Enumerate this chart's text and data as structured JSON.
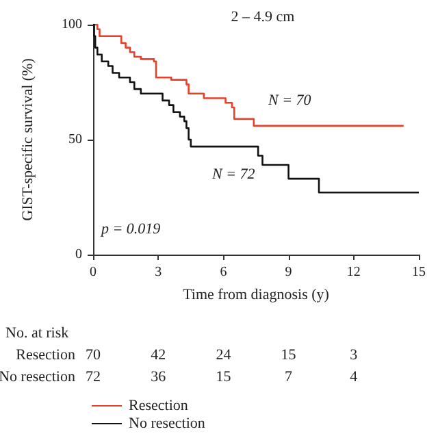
{
  "chart_data": {
    "type": "step",
    "title": "2 – 4.9 cm",
    "xlabel": "Time from diagnosis (y)",
    "ylabel": "GIST-specific survival (%)",
    "xlim": [
      0,
      15
    ],
    "xticks": [
      0,
      3,
      6,
      9,
      12,
      15
    ],
    "ylim": [
      0,
      100
    ],
    "yticks": [
      0,
      50,
      100
    ],
    "grid": false,
    "legend": "bottom left",
    "marker": "none",
    "line_style": "solid",
    "series": [
      {
        "name": "Resection",
        "color": "#e8402a",
        "x": [
          0,
          0.2,
          0.3,
          1.2,
          1.3,
          1.5,
          1.7,
          1.9,
          2.2,
          2.8,
          2.9,
          3.6,
          4.3,
          4.4,
          5.1,
          6.1,
          6.4,
          6.5,
          7.4,
          14.3
        ],
        "values": [
          100,
          98,
          95,
          95,
          92,
          90,
          88,
          86,
          85,
          84,
          77,
          76,
          74,
          70,
          68,
          66,
          64,
          59,
          56,
          56
        ]
      },
      {
        "name": "No resection",
        "color": "#111111",
        "x": [
          0,
          0.05,
          0.1,
          0.2,
          0.4,
          0.7,
          0.9,
          1.2,
          1.7,
          1.9,
          2.2,
          3.2,
          3.5,
          3.7,
          4.0,
          4.2,
          4.3,
          4.4,
          4.5,
          7.6,
          7.8,
          9.0,
          10.4,
          15
        ],
        "values": [
          100,
          95,
          90,
          87,
          84,
          82,
          79,
          77,
          75,
          72,
          70,
          67,
          65,
          62,
          60,
          58,
          55,
          50,
          47,
          43,
          39,
          33,
          27,
          27
        ]
      }
    ],
    "annotations": [
      "N = 70",
      "N = 72",
      "p = 0.019",
      "No. at risk",
      "Resection 70 42 24 15 3",
      "No resection 72 36 15 7 4"
    ]
  }
}
